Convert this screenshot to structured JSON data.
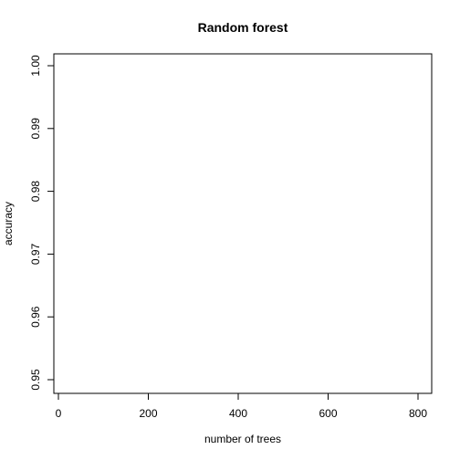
{
  "chart_data": {
    "type": "line",
    "title": "Random forest",
    "xlabel": "number of trees",
    "ylabel": "accuracy",
    "xlim": [
      0,
      800
    ],
    "ylim": [
      0.95,
      1.0
    ],
    "x_ticks": [
      0,
      200,
      400,
      600,
      800
    ],
    "x_tick_labels": [
      "0",
      "200",
      "400",
      "600",
      "800"
    ],
    "y_ticks": [
      0.95,
      0.96,
      0.97,
      0.98,
      0.99,
      1.0
    ],
    "y_tick_labels": [
      "0.95",
      "0.96",
      "0.97",
      "0.98",
      "0.99",
      "1.00"
    ],
    "series": [],
    "grid": false,
    "legend": "none"
  }
}
